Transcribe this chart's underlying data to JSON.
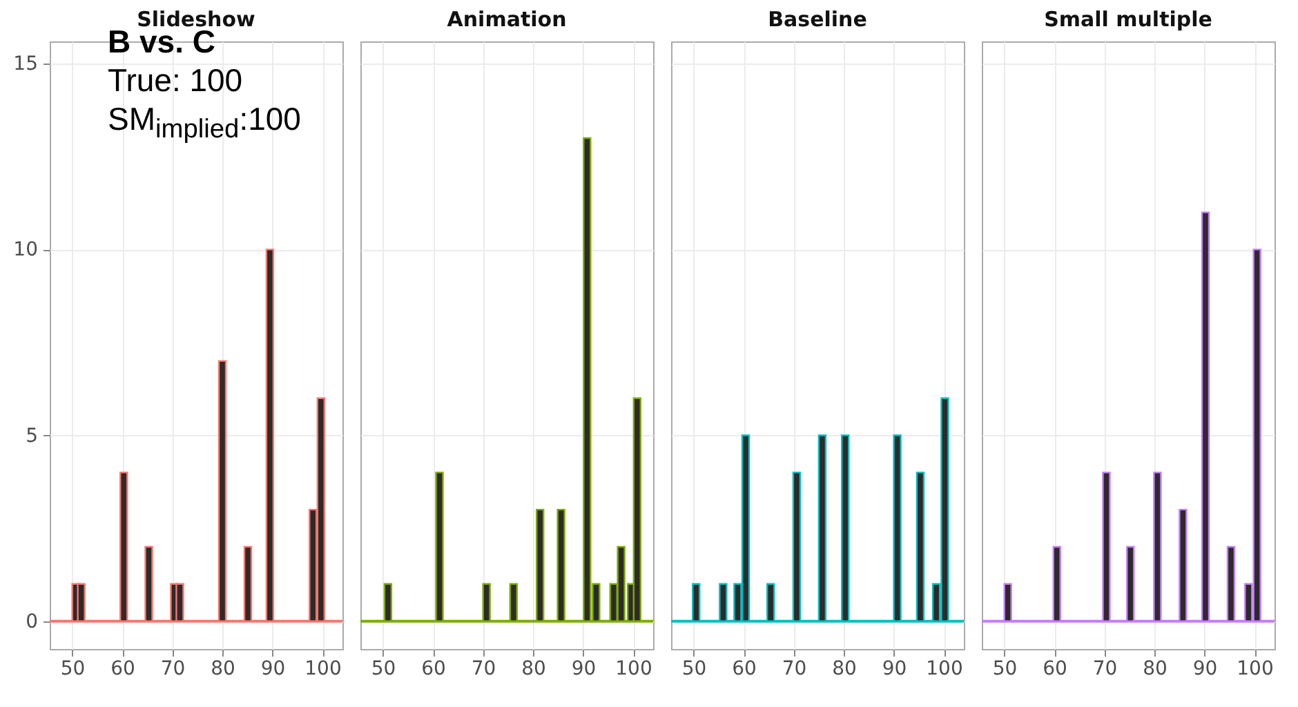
{
  "chart_data": [
    {
      "type": "bar",
      "title": "Slideshow",
      "annotations": [
        "B vs. C",
        "True: 100",
        "SM$_{implied}$:100"
      ],
      "series": [
        {
          "color": "#f8766d",
          "x": [
            50.7,
            51.8,
            60.3,
            65.3,
            70.4,
            71.5,
            80.0,
            85.1,
            89.5,
            98.1,
            99.7
          ],
          "values": [
            1,
            1,
            4,
            2,
            1,
            1,
            7,
            2,
            10,
            3,
            6
          ]
        }
      ],
      "xlim": [
        45.5,
        104
      ],
      "xticks": [
        50,
        60,
        70,
        80,
        90,
        100
      ],
      "ylim": [
        -0.75,
        15.6
      ],
      "yticks": [
        0,
        5,
        10,
        15
      ],
      "grid": true,
      "ref_lines": [
        {
          "axis": "y",
          "value": 0,
          "color": "#f8766d"
        }
      ]
    },
    {
      "type": "bar",
      "title": "Animation",
      "series": [
        {
          "color": "#7cae00",
          "x": [
            51.0,
            61.3,
            70.7,
            76.1,
            81.4,
            85.6,
            90.8,
            92.6,
            96.1,
            97.6,
            99.6,
            100.8
          ],
          "values": [
            1,
            4,
            1,
            1,
            3,
            3,
            13,
            1,
            1,
            2,
            1,
            6
          ]
        }
      ],
      "xlim": [
        45.5,
        104
      ],
      "xticks": [
        50,
        60,
        70,
        80,
        90,
        100
      ],
      "ylim": [
        -0.75,
        15.6
      ],
      "yticks": [
        0,
        5,
        10,
        15
      ],
      "grid": true,
      "tick_labels": "x",
      "ref_lines": [
        {
          "axis": "y",
          "value": 0,
          "color": "#7cae00"
        }
      ]
    },
    {
      "type": "bar",
      "title": "Baseline",
      "series": [
        {
          "color": "#00bfc4",
          "x": [
            50.5,
            55.9,
            58.8,
            60.4,
            65.4,
            70.6,
            75.7,
            80.3,
            90.7,
            95.3,
            98.5,
            100.2
          ],
          "values": [
            1,
            1,
            1,
            5,
            1,
            4,
            5,
            5,
            5,
            4,
            1,
            6
          ]
        }
      ],
      "xlim": [
        45.5,
        104
      ],
      "xticks": [
        50,
        60,
        70,
        80,
        90,
        100
      ],
      "ylim": [
        -0.75,
        15.6
      ],
      "yticks": [
        0,
        5,
        10,
        15
      ],
      "grid": true,
      "tick_labels": "x",
      "ref_lines": [
        {
          "axis": "y",
          "value": 0,
          "color": "#00bfc4"
        }
      ]
    },
    {
      "type": "bar",
      "title": "Small multiple",
      "series": [
        {
          "color": "#c77cff",
          "x": [
            50.7,
            60.5,
            70.4,
            75.2,
            80.6,
            85.7,
            90.2,
            95.3,
            98.8,
            100.5
          ],
          "values": [
            1,
            2,
            4,
            2,
            4,
            3,
            11,
            2,
            1,
            10
          ]
        }
      ],
      "xlim": [
        45.5,
        104
      ],
      "xticks": [
        50,
        60,
        70,
        80,
        90,
        100
      ],
      "ylim": [
        -0.75,
        15.6
      ],
      "yticks": [
        0,
        5,
        10,
        15
      ],
      "grid": true,
      "tick_labels": "x",
      "ref_lines": [
        {
          "axis": "y",
          "value": 0,
          "color": "#c77cff"
        }
      ]
    }
  ]
}
